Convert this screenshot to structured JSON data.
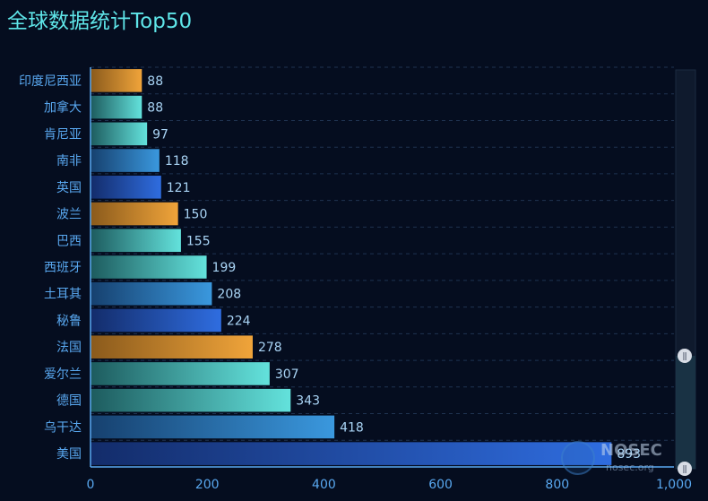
{
  "page": {
    "title": "全球数据统计Top50"
  },
  "colors": {
    "background": "#050d1f",
    "title": "#5fe6e9",
    "axis_label": "#59a8f0",
    "value_label": "#a9d4f5",
    "grid": "#1f3350",
    "bar_palette": [
      [
        "#8a5a1c",
        "#f0a43a"
      ],
      [
        "#1d5b5e",
        "#63e2dc"
      ],
      [
        "#16406e",
        "#3a98de"
      ],
      [
        "#132c6a",
        "#2f6de0"
      ]
    ]
  },
  "chart_data": {
    "type": "bar",
    "orientation": "horizontal",
    "title": "全球数据统计Top50",
    "categories": [
      "印度尼西亚",
      "加拿大",
      "肯尼亚",
      "南非",
      "英国",
      "波兰",
      "巴西",
      "西班牙",
      "土耳其",
      "秘鲁",
      "法国",
      "爱尔兰",
      "德国",
      "乌干达",
      "美国"
    ],
    "values": [
      88,
      88,
      97,
      118,
      121,
      150,
      155,
      199,
      208,
      224,
      278,
      307,
      343,
      418,
      893
    ],
    "value_labels": [
      "88",
      "88",
      "97",
      "118",
      "121",
      "150",
      "155",
      "199",
      "208",
      "224",
      "278",
      "307",
      "343",
      "418",
      "893"
    ],
    "color_index": [
      0,
      1,
      1,
      2,
      3,
      0,
      1,
      1,
      2,
      3,
      0,
      1,
      1,
      2,
      3
    ],
    "xlim": [
      0,
      1000
    ],
    "xticks": [
      0,
      200,
      400,
      600,
      800,
      1000
    ],
    "xtick_labels": [
      "0",
      "200",
      "400",
      "600",
      "800",
      "1,000"
    ],
    "grid": true,
    "datazoom": {
      "type": "slider",
      "orientation": "vertical",
      "position": "right",
      "handle_glyph": "⫼"
    }
  },
  "watermark": {
    "name": "NOSEC",
    "site": "nosec.org"
  }
}
